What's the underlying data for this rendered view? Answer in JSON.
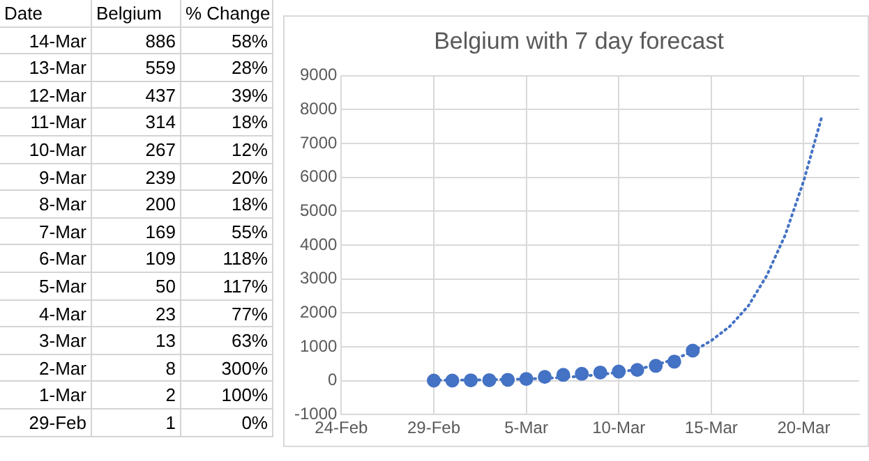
{
  "chart_data": [
    {
      "type": "other",
      "annotations": [
        "Date",
        "Belgium",
        "% Change",
        "14-Mar",
        "886",
        "58%",
        "13-Mar",
        "559",
        "28%",
        "12-Mar",
        "437",
        "39%",
        "11-Mar",
        "314",
        "18%",
        "10-Mar",
        "267",
        "12%",
        "9-Mar",
        "239",
        "20%",
        "8-Mar",
        "200",
        "18%",
        "7-Mar",
        "169",
        "55%",
        "6-Mar",
        "109",
        "118%",
        "5-Mar",
        "50",
        "117%",
        "4-Mar",
        "23",
        "77%",
        "3-Mar",
        "13",
        "63%",
        "2-Mar",
        "8",
        "300%",
        "1-Mar",
        "2",
        "100%",
        "29-Feb",
        "1",
        "0%"
      ]
    },
    {
      "type": "scatter",
      "title": "Belgium with 7 day forecast",
      "grid": true,
      "legend": false,
      "marker": "circle",
      "xlim": [
        "--02-24",
        "--03-23"
      ],
      "xticks": [
        {
          "value": "--02-24",
          "label": "24-Feb"
        },
        {
          "value": "--02-29",
          "label": "29-Feb"
        },
        {
          "value": "--03-05",
          "label": "5-Mar"
        },
        {
          "value": "--03-10",
          "label": "10-Mar"
        },
        {
          "value": "--03-15",
          "label": "15-Mar"
        },
        {
          "value": "--03-20",
          "label": "20-Mar"
        }
      ],
      "ylim": [
        -1000,
        9000
      ],
      "yticks": [
        -1000,
        0,
        1000,
        2000,
        3000,
        4000,
        5000,
        6000,
        7000,
        8000,
        9000
      ],
      "x": [
        "--02-29",
        "--03-01",
        "--03-02",
        "--03-03",
        "--03-04",
        "--03-05",
        "--03-06",
        "--03-07",
        "--03-08",
        "--03-09",
        "--03-10",
        "--03-11",
        "--03-12",
        "--03-13",
        "--03-14"
      ],
      "series": [
        {
          "type": "scatter",
          "color": "#4472c4",
          "values": [
            1,
            2,
            8,
            13,
            23,
            50,
            109,
            169,
            200,
            239,
            267,
            314,
            437,
            559,
            886
          ]
        },
        {
          "type": "line",
          "color": "#4472c4",
          "marker": "none",
          "line_style": "dotted",
          "x": [
            "--02-29",
            "--03-01",
            "--03-02",
            "--03-03",
            "--03-04",
            "--03-05",
            "--03-06",
            "--03-07",
            "--03-08",
            "--03-09",
            "--03-10",
            "--03-11",
            "--03-12",
            "--03-13",
            "--03-14",
            "--03-15",
            "--03-16",
            "--03-17",
            "--03-18",
            "--03-19",
            "--03-20",
            "--03-21"
          ],
          "values": [
            10,
            14,
            20,
            27,
            37,
            50,
            70,
            95,
            130,
            180,
            245,
            335,
            460,
            630,
            860,
            1180,
            1600,
            2200,
            3100,
            4300,
            5900,
            7840
          ]
        }
      ]
    }
  ]
}
